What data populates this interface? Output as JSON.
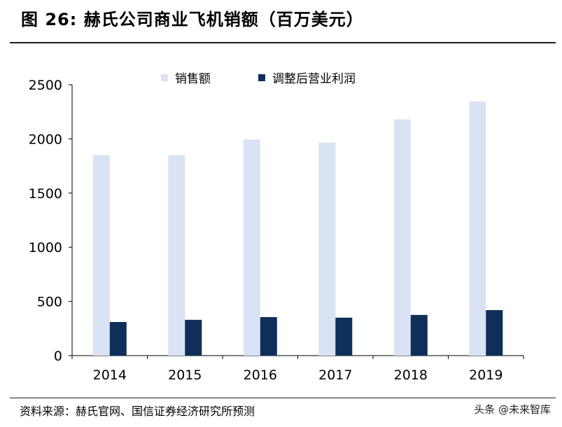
{
  "header": {
    "title": "图 26:  赫氏公司商业飞机销额（百万美元）"
  },
  "footer": {
    "source": "资料来源：赫氏官网、国信证券经济研究所预测",
    "watermark": "头条 @未来智库"
  },
  "colors": {
    "sales": "#dae3f3",
    "profit": "#0e2f5a",
    "axis": "#000000"
  },
  "chart_data": {
    "type": "bar",
    "categories": [
      "2014",
      "2015",
      "2016",
      "2017",
      "2018",
      "2019"
    ],
    "series": [
      {
        "name": "销售额",
        "values": [
          1850,
          1850,
          1995,
          1965,
          2180,
          2345
        ]
      },
      {
        "name": "调整后营业利润",
        "values": [
          310,
          330,
          355,
          350,
          375,
          420
        ]
      }
    ],
    "y_ticks": [
      "0",
      "500",
      "1000",
      "1500",
      "2000",
      "2500"
    ],
    "ylim": [
      0,
      2500
    ],
    "legend": "top",
    "grid": false
  }
}
